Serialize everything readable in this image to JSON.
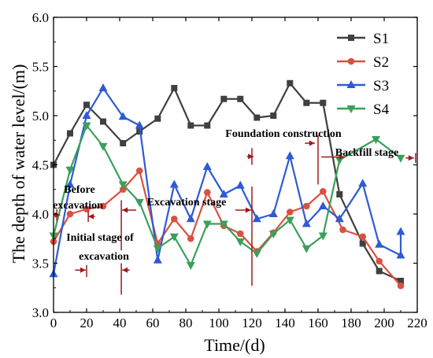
{
  "chart_data": {
    "type": "line",
    "xlabel": "Time/(d)",
    "ylabel": "The depth of water level/(m)",
    "xlim": [
      0,
      220
    ],
    "ylim": [
      3.0,
      6.0
    ],
    "xticks": [
      "0",
      "20",
      "40",
      "60",
      "80",
      "100",
      "120",
      "140",
      "160",
      "180",
      "200",
      "220"
    ],
    "yticks": [
      "3.0",
      "3.5",
      "4.0",
      "4.5",
      "5.0",
      "5.5",
      "6.0"
    ],
    "legend_position": "top-right",
    "series": [
      {
        "name": "S1",
        "color": "#404040",
        "marker": "square",
        "points": [
          [
            0,
            4.5
          ],
          [
            10,
            4.82
          ],
          [
            20,
            5.11
          ],
          [
            30,
            4.94
          ],
          [
            42,
            4.72
          ],
          [
            52,
            4.84
          ],
          [
            63,
            4.97
          ],
          [
            73,
            5.28
          ],
          [
            83,
            4.9
          ],
          [
            93,
            4.9
          ],
          [
            103,
            5.17
          ],
          [
            113,
            5.17
          ],
          [
            123,
            4.98
          ],
          [
            133,
            5.0
          ],
          [
            143,
            5.33
          ],
          [
            153,
            5.13
          ],
          [
            163,
            5.13
          ],
          [
            173,
            4.2
          ],
          [
            187,
            3.7
          ],
          [
            197,
            3.42
          ],
          [
            210,
            3.32
          ]
        ]
      },
      {
        "name": "S2",
        "color": "#d9513f",
        "marker": "circle",
        "points": [
          [
            0,
            3.72
          ],
          [
            10,
            4.0
          ],
          [
            20,
            4.05
          ],
          [
            30,
            4.08
          ],
          [
            42,
            4.25
          ],
          [
            52,
            4.44
          ],
          [
            63,
            3.7
          ],
          [
            73,
            3.95
          ],
          [
            83,
            3.75
          ],
          [
            93,
            4.22
          ],
          [
            103,
            3.88
          ],
          [
            113,
            3.8
          ],
          [
            123,
            3.62
          ],
          [
            133,
            3.81
          ],
          [
            143,
            4.02
          ],
          [
            153,
            4.08
          ],
          [
            163,
            4.23
          ],
          [
            175,
            3.84
          ],
          [
            187,
            3.77
          ],
          [
            197,
            3.52
          ],
          [
            210,
            3.27
          ]
        ]
      },
      {
        "name": "S3",
        "color": "#2e5ad4",
        "marker": "triangle-up",
        "points": [
          [
            0,
            3.39
          ],
          [
            10,
            4.3
          ],
          [
            20,
            5.0
          ],
          [
            30,
            5.28
          ],
          [
            42,
            4.99
          ],
          [
            52,
            4.9
          ],
          [
            63,
            3.53
          ],
          [
            73,
            4.3
          ],
          [
            83,
            3.95
          ],
          [
            93,
            4.48
          ],
          [
            103,
            4.2
          ],
          [
            113,
            4.29
          ],
          [
            123,
            3.95
          ],
          [
            133,
            4.0
          ],
          [
            143,
            4.59
          ],
          [
            153,
            3.9
          ],
          [
            163,
            4.08
          ],
          [
            173,
            3.95
          ],
          [
            187,
            4.31
          ],
          [
            197,
            3.69
          ],
          [
            210,
            3.58
          ],
          [
            210,
            3.82
          ]
        ]
      },
      {
        "name": "S4",
        "color": "#3aa05a",
        "marker": "triangle-down",
        "points": [
          [
            0,
            3.78
          ],
          [
            10,
            4.45
          ],
          [
            20,
            4.9
          ],
          [
            30,
            4.69
          ],
          [
            42,
            4.3
          ],
          [
            52,
            4.12
          ],
          [
            63,
            3.65
          ],
          [
            73,
            3.77
          ],
          [
            83,
            3.48
          ],
          [
            93,
            3.9
          ],
          [
            103,
            3.9
          ],
          [
            113,
            3.72
          ],
          [
            123,
            3.6
          ],
          [
            133,
            3.8
          ],
          [
            143,
            3.94
          ],
          [
            153,
            3.65
          ],
          [
            163,
            3.78
          ],
          [
            173,
            4.55
          ],
          [
            195,
            4.76
          ],
          [
            210,
            4.57
          ]
        ]
      }
    ],
    "annotations": [
      {
        "id": "foundation",
        "label": "Foundation construction"
      },
      {
        "id": "backfill",
        "label": "Backfill stage"
      },
      {
        "id": "before1",
        "label": "Before"
      },
      {
        "id": "before2",
        "label": "excavation"
      },
      {
        "id": "excavation_stage",
        "label": "Excavation stage"
      },
      {
        "id": "initial1",
        "label": "Initial stage of"
      },
      {
        "id": "initial2",
        "label": "excavation"
      }
    ]
  }
}
